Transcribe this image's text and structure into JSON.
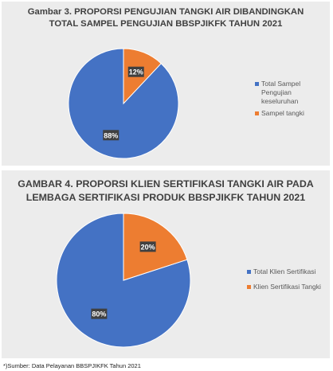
{
  "colors": {
    "blue": "#4472c4",
    "orange": "#ed7d31",
    "panel_bg": "#ececec",
    "label_bg": "#404040"
  },
  "footnote": "*)Sumber: Data Pelayanan BBSPJIKFK Tahun 2021",
  "chart_data": [
    {
      "type": "pie",
      "title_lines": [
        "Gambar 3. PROPORSI PENGUJIAN TANGKI AIR DIBANDINGKAN",
        "TOTAL SAMPEL PENGUJIAN BBSPJIKFK TAHUN 2021"
      ],
      "slices": [
        {
          "name": "Total Sampel Pengujian keseluruhan",
          "value": 88,
          "label": "88%",
          "color": "#4472c4"
        },
        {
          "name": "Sampel tangki",
          "value": 12,
          "label": "12%",
          "color": "#ed7d31"
        }
      ],
      "legend_position": "right"
    },
    {
      "type": "pie",
      "title_lines": [
        "GAMBAR 4. PROPORSI KLIEN SERTIFIKASI TANGKI AIR PADA",
        "LEMBAGA SERTIFIKASI PRODUK BBSPJIKFK TAHUN 2021"
      ],
      "slices": [
        {
          "name": "Total Klien Sertifikasi",
          "value": 80,
          "label": "80%",
          "color": "#4472c4"
        },
        {
          "name": "Klien Sertifikasi Tangki",
          "value": 20,
          "label": "20%",
          "color": "#ed7d31"
        }
      ],
      "legend_position": "right"
    }
  ]
}
